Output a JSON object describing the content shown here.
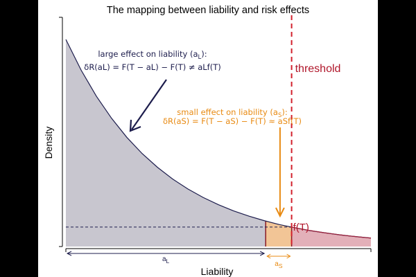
{
  "chart_data": {
    "type": "area",
    "title": "The mapping between liability and risk effects",
    "xlabel": "Liability",
    "ylabel": "Density",
    "grid": false,
    "curve": {
      "x": [
        0,
        0.5,
        1,
        1.5,
        2,
        2.5,
        3,
        3.5,
        4,
        4.5,
        5,
        5.5,
        6,
        6.5,
        7,
        7.5,
        8,
        8.5,
        9,
        9.5,
        10
      ],
      "y": [
        1,
        0.852,
        0.726,
        0.619,
        0.527,
        0.449,
        0.383,
        0.326,
        0.278,
        0.237,
        0.202,
        0.172,
        0.147,
        0.125,
        0.106,
        0.091,
        0.077,
        0.066,
        0.056,
        0.048,
        0.041
      ]
    },
    "threshold": {
      "x": 7.4,
      "label": "threshold"
    },
    "small_effect_start": 6.55,
    "f_at_threshold": 0.2,
    "labels": {
      "ft": "f(T)",
      "a_l": "a",
      "a_l_sub": "L",
      "a_s": "a",
      "a_s_sub": "S"
    },
    "annotations": {
      "large_line1": "large effect on liability (a",
      "large_line1_sub": "L",
      "large_line1_end": "):",
      "large_line2": "δR(aL) = F(T − aL) − F(T) ≠ aLf(T)",
      "small_line1": "small effect on liability (a",
      "small_line1_sub": "S",
      "small_line1_end": "):",
      "small_line2": "δR(aS) = F(T − aS) − F(T) ≈ aSf(T)"
    },
    "colors": {
      "curve": "#1c1c4c",
      "area_left": "#c8c6cf",
      "area_small": "#f2c596",
      "area_right": "#e3b0b9",
      "threshold": "#d2202c",
      "small_effect": "#e88a12",
      "large_arrow": "#1c1c4c"
    }
  }
}
